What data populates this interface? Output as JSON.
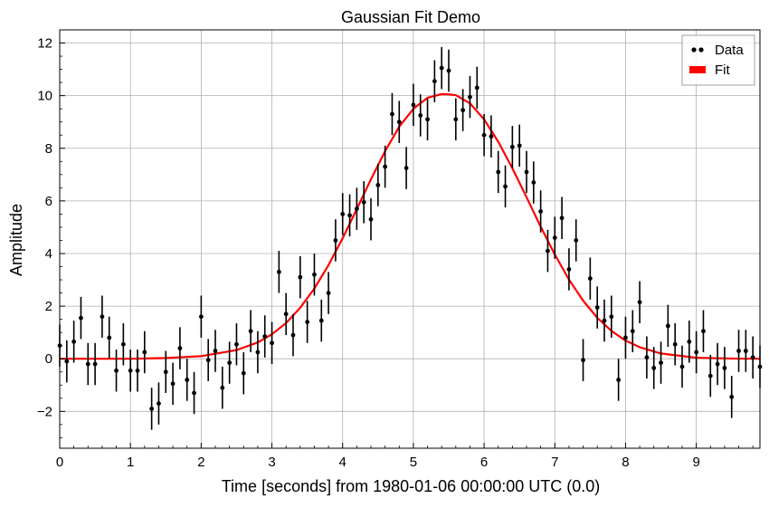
{
  "chart_data": {
    "type": "scatter",
    "title": "Gaussian Fit Demo",
    "xlabel": "Time [seconds] from 1980-01-06 00:00:00 UTC (0.0)",
    "ylabel": "Amplitude",
    "xlim": [
      0,
      9.9
    ],
    "ylim": [
      -3.4,
      12.5
    ],
    "xticks": [
      0,
      1,
      2,
      3,
      4,
      5,
      6,
      7,
      8,
      9
    ],
    "xtick_labels": [
      "0",
      "1",
      "2",
      "3",
      "4",
      "5",
      "6",
      "7",
      "8",
      "9"
    ],
    "yticks": [
      -2,
      0,
      2,
      4,
      6,
      8,
      10,
      12
    ],
    "ytick_labels": [
      "−2",
      "0",
      "2",
      "4",
      "6",
      "8",
      "10",
      "12"
    ],
    "grid": true,
    "legend": {
      "position": "top-right",
      "entries": [
        {
          "label": "Data",
          "marker": "dots",
          "color": "#000000"
        },
        {
          "label": "Fit",
          "marker": "patch",
          "color": "#ff0000"
        }
      ]
    },
    "series": [
      {
        "name": "Data",
        "kind": "errorbar",
        "color": "#000000",
        "error": 0.8,
        "x": [
          0.0,
          0.1,
          0.2,
          0.3,
          0.4,
          0.5,
          0.6,
          0.7,
          0.8,
          0.9,
          1.0,
          1.1,
          1.2,
          1.3,
          1.4,
          1.5,
          1.6,
          1.7,
          1.8,
          1.9,
          2.0,
          2.1,
          2.2,
          2.3,
          2.4,
          2.5,
          2.6,
          2.7,
          2.8,
          2.9,
          3.0,
          3.1,
          3.2,
          3.3,
          3.4,
          3.5,
          3.6,
          3.7,
          3.8,
          3.9,
          4.0,
          4.1,
          4.2,
          4.3,
          4.4,
          4.5,
          4.6,
          4.7,
          4.8,
          4.9,
          5.0,
          5.1,
          5.2,
          5.3,
          5.4,
          5.5,
          5.6,
          5.7,
          5.8,
          5.9,
          6.0,
          6.1,
          6.2,
          6.3,
          6.4,
          6.5,
          6.6,
          6.7,
          6.8,
          6.9,
          7.0,
          7.1,
          7.2,
          7.3,
          7.4,
          7.5,
          7.6,
          7.7,
          7.8,
          7.9,
          8.0,
          8.1,
          8.2,
          8.3,
          8.4,
          8.5,
          8.6,
          8.7,
          8.8,
          8.9,
          9.0,
          9.1,
          9.2,
          9.3,
          9.4,
          9.5,
          9.6,
          9.7,
          9.8,
          9.9
        ],
        "y": [
          0.5,
          -0.1,
          0.65,
          1.55,
          -0.2,
          -0.2,
          1.6,
          0.8,
          -0.45,
          0.55,
          -0.45,
          -0.45,
          0.25,
          -1.9,
          -1.7,
          -0.5,
          -0.95,
          0.4,
          -0.8,
          -1.3,
          1.6,
          -0.05,
          0.3,
          -1.1,
          -0.15,
          0.55,
          -0.55,
          1.05,
          0.25,
          0.85,
          0.6,
          3.3,
          1.7,
          0.9,
          3.1,
          1.4,
          3.2,
          1.45,
          2.5,
          4.5,
          5.5,
          5.45,
          5.7,
          5.95,
          5.3,
          6.6,
          7.3,
          9.3,
          9.0,
          7.25,
          9.65,
          9.25,
          9.1,
          10.55,
          11.05,
          10.95,
          9.1,
          9.45,
          9.95,
          10.3,
          8.5,
          8.45,
          7.1,
          6.55,
          8.05,
          8.1,
          7.1,
          6.7,
          5.6,
          4.1,
          4.6,
          5.35,
          3.4,
          4.5,
          -0.05,
          3.05,
          1.95,
          1.45,
          1.6,
          -0.8,
          0.8,
          1.05,
          2.15,
          0.05,
          -0.35,
          -0.15,
          1.25,
          0.55,
          -0.3,
          0.65,
          0.25,
          1.05,
          -0.65,
          -0.2,
          -0.35,
          -1.45,
          0.3,
          0.3,
          0.05,
          -0.3
        ]
      },
      {
        "name": "Fit",
        "kind": "line",
        "color": "#ff0000",
        "x": [
          0.0,
          0.5,
          1.0,
          1.5,
          2.0,
          2.5,
          2.8,
          3.0,
          3.2,
          3.4,
          3.6,
          3.8,
          4.0,
          4.2,
          4.4,
          4.6,
          4.8,
          5.0,
          5.2,
          5.4,
          5.5,
          5.6,
          5.8,
          6.0,
          6.2,
          6.4,
          6.6,
          6.8,
          7.0,
          7.2,
          7.4,
          7.6,
          7.8,
          8.0,
          8.2,
          8.5,
          9.0,
          9.5,
          9.9
        ],
        "y": [
          0.0,
          0.0,
          0.0,
          0.03,
          0.1,
          0.33,
          0.62,
          0.93,
          1.36,
          1.94,
          2.67,
          3.56,
          4.58,
          5.69,
          6.82,
          7.89,
          8.82,
          9.5,
          9.92,
          10.06,
          10.05,
          10.02,
          9.71,
          9.1,
          8.25,
          7.24,
          6.14,
          5.02,
          3.96,
          3.01,
          2.21,
          1.56,
          1.06,
          0.69,
          0.44,
          0.2,
          0.04,
          0.01,
          0.0
        ]
      }
    ]
  }
}
